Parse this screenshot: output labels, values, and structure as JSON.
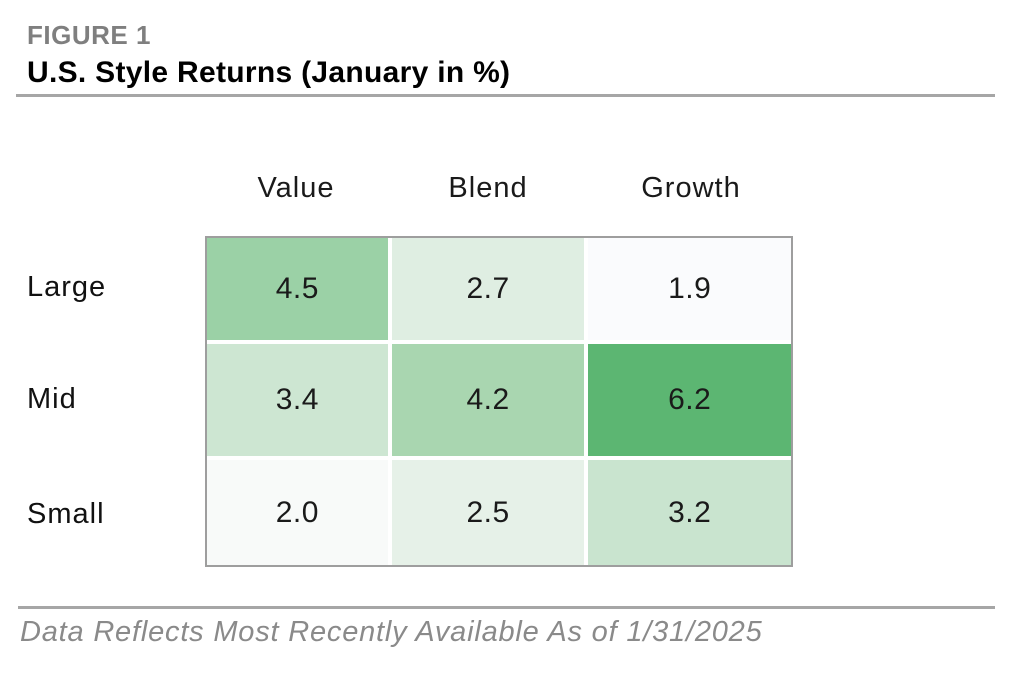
{
  "figure": {
    "label": "FIGURE 1",
    "title": "U.S. Style Returns (January in %)"
  },
  "chart_data": {
    "type": "heatmap",
    "title": "U.S. Style Returns (January in %)",
    "unit": "%",
    "columns": [
      "Value",
      "Blend",
      "Growth"
    ],
    "rows": [
      "Large",
      "Mid",
      "Small"
    ],
    "values": [
      [
        4.5,
        2.7,
        1.9
      ],
      [
        3.4,
        4.2,
        6.2
      ],
      [
        2.0,
        2.5,
        3.2
      ]
    ],
    "cell_labels": [
      [
        "4.5",
        "2.7",
        "1.9"
      ],
      [
        "3.4",
        "4.2",
        "6.2"
      ],
      [
        "2.0",
        "2.5",
        "3.2"
      ]
    ],
    "cell_colors": [
      [
        "#9bd1a6",
        "#dfeee2",
        "#fafbfd"
      ],
      [
        "#cde6d2",
        "#a9d6b0",
        "#5cb672"
      ],
      [
        "#f8faf9",
        "#e6f1e8",
        "#c9e4cf"
      ]
    ],
    "colormap": {
      "low_color": "#ffffff",
      "high_color": "#5cb672",
      "domain": [
        1.9,
        6.2
      ]
    },
    "legend": "none",
    "grid": "white gaps between cells, gray outer border"
  },
  "footer": {
    "note": "Data Reflects Most Recently Available As of 1/31/2025"
  },
  "colors": {
    "figure_label": "#7f7f7f",
    "title_text": "#000000",
    "divider": "#a6a6a6",
    "table_border": "#9e9e9e",
    "cell_text": "#1a1a1a",
    "row_label_text": "#111111",
    "footer_text": "#8a8a8a",
    "background": "#ffffff"
  }
}
